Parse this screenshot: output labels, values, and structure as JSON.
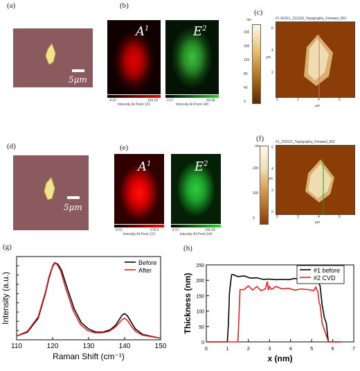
{
  "panels": {
    "a": {
      "label": "(a)",
      "scale": "5μm"
    },
    "b": {
      "label": "(b)",
      "left": {
        "species": "A",
        "sup": "1",
        "min": "-0.67",
        "max": "183.02",
        "caption": "Intensity At Point 121"
      },
      "right": {
        "species": "E",
        "sup": "2",
        "min": "0.57",
        "max": "69.98",
        "caption": "Intensity At Point 140"
      }
    },
    "c": {
      "label": "(c)",
      "title": "#1 S01F1_211229_Topography_Forward_003",
      "unit": "nm",
      "cbar_ticks": [
        "200",
        "160",
        "120",
        "80",
        "40",
        "0"
      ],
      "axis_unit": "μm",
      "xticks": [
        "0",
        "2",
        "4",
        "6"
      ],
      "yticks": [
        "6",
        "4",
        "2"
      ]
    },
    "d": {
      "label": "(d)",
      "scale": "5μm"
    },
    "e": {
      "label": "(e)",
      "left": {
        "species": "A",
        "sup": "1",
        "min": "8.52",
        "max": "678.5",
        "caption": "Intensity At Point 121"
      },
      "right": {
        "species": "E",
        "sup": "2",
        "min": "6.57",
        "max": "235.92",
        "caption": "Intensity At Point 140"
      }
    },
    "f": {
      "label": "(f)",
      "title": "#1_220112_Topography_Forward_002",
      "unit": "nm",
      "cbar_ticks": [
        "200",
        "100",
        "0"
      ],
      "axis_unit": "μm",
      "xticks": [
        "0",
        "2",
        "4",
        "6"
      ],
      "yticks": [
        "6",
        "4",
        "2",
        "0"
      ]
    },
    "g": {
      "label": "(g)"
    },
    "h": {
      "label": "(h)"
    }
  },
  "chart_data": [
    {
      "type": "line",
      "panel": "g",
      "xlabel": "Raman Shift (cm⁻¹)",
      "ylabel": "Intensity (a.u.)",
      "xlim": [
        110,
        150
      ],
      "xticks": [
        110,
        120,
        130,
        140,
        150
      ],
      "legend_position": "top-right",
      "series": [
        {
          "name": "Before",
          "color": "#000000",
          "x": [
            110,
            113,
            116,
            118,
            119,
            120,
            120.7,
            121.5,
            122.5,
            124,
            126,
            128,
            130,
            132,
            134,
            136,
            137.5,
            138.5,
            139.3,
            140,
            140.8,
            141.8,
            143,
            145,
            150
          ],
          "y": [
            0.05,
            0.1,
            0.28,
            0.6,
            0.8,
            0.95,
            1.0,
            0.98,
            0.9,
            0.68,
            0.4,
            0.22,
            0.14,
            0.1,
            0.1,
            0.13,
            0.19,
            0.26,
            0.32,
            0.34,
            0.31,
            0.23,
            0.14,
            0.07,
            0.02
          ]
        },
        {
          "name": "After",
          "color": "#e32222",
          "x": [
            110,
            113,
            116,
            118,
            119,
            120,
            120.5,
            121.2,
            122.2,
            123.7,
            125.7,
            127.7,
            129.7,
            131.7,
            133.7,
            135.7,
            137.3,
            138.5,
            139.3,
            140,
            140.8,
            141.8,
            143,
            145,
            150
          ],
          "y": [
            0.05,
            0.11,
            0.3,
            0.62,
            0.82,
            0.96,
            1.0,
            0.98,
            0.9,
            0.66,
            0.38,
            0.2,
            0.12,
            0.09,
            0.09,
            0.11,
            0.16,
            0.22,
            0.26,
            0.28,
            0.25,
            0.18,
            0.11,
            0.06,
            0.02
          ]
        }
      ]
    },
    {
      "type": "line",
      "panel": "h",
      "xlabel": "x (nm)",
      "ylabel": "Thickness (nm)",
      "xlim": [
        0,
        7
      ],
      "ylim": [
        0,
        250
      ],
      "xticks": [
        0,
        1,
        2,
        3,
        4,
        5,
        6,
        7
      ],
      "yticks": [
        0,
        50,
        100,
        150,
        200,
        250
      ],
      "legend_position": "top-right",
      "series": [
        {
          "name": "#1 before",
          "color": "#000000",
          "x": [
            0,
            1.0,
            1.05,
            1.1,
            1.2,
            1.3,
            1.5,
            1.8,
            2.1,
            2.4,
            2.7,
            3.0,
            3.3,
            3.6,
            3.9,
            4.2,
            4.5,
            4.8,
            5.1,
            5.3,
            5.4,
            5.5,
            5.6,
            5.7,
            5.75,
            5.8,
            6.4
          ],
          "y": [
            0,
            0,
            60,
            160,
            218,
            218,
            212,
            214,
            207,
            208,
            203,
            204,
            202,
            203,
            202,
            206,
            203,
            205,
            202,
            198,
            182,
            120,
            80,
            60,
            25,
            0,
            0
          ]
        },
        {
          "name": "#2 CVD",
          "color": "#e32222",
          "x": [
            0,
            1.5,
            1.55,
            1.6,
            1.8,
            2.0,
            2.2,
            2.4,
            2.6,
            2.8,
            2.9,
            2.95,
            3.0,
            3.1,
            3.3,
            3.6,
            3.9,
            4.2,
            4.5,
            4.8,
            5.0,
            5.1,
            5.2,
            5.3,
            5.35,
            5.4,
            5.5,
            5.6,
            5.7,
            5.8,
            6.4
          ],
          "y": [
            0,
            0,
            80,
            170,
            170,
            182,
            168,
            180,
            166,
            172,
            196,
            168,
            180,
            170,
            180,
            172,
            174,
            168,
            172,
            170,
            168,
            166,
            178,
            162,
            130,
            120,
            60,
            40,
            20,
            0,
            0
          ]
        }
      ]
    }
  ]
}
